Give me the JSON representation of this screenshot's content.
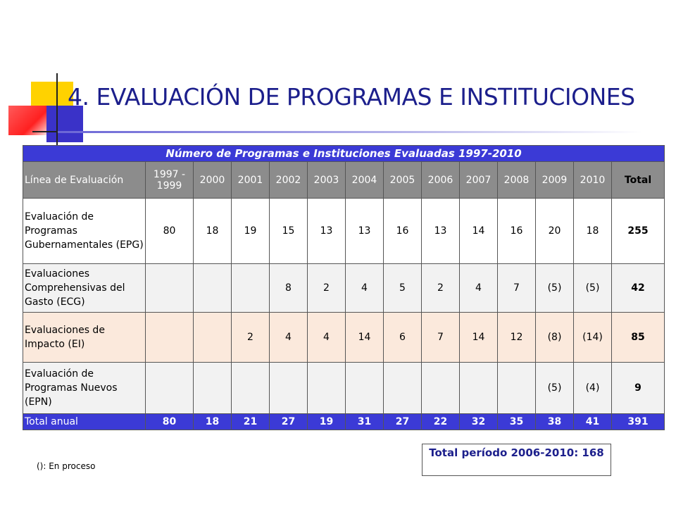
{
  "slide": {
    "title": "4. EVALUACIÓN DE PROGRAMAS E INSTITUCIONES",
    "note": "(): En proceso",
    "period_total": "Total período 2006-2010: 168"
  },
  "table": {
    "caption": "Número de Programas e Instituciones Evaluadas 1997-2010",
    "header": {
      "line_label": "Línea de Evaluación",
      "years": [
        "1997 - 1999",
        "2000",
        "2001",
        "2002",
        "2003",
        "2004",
        "2005",
        "2006",
        "2007",
        "2008",
        "2009",
        "2010"
      ],
      "total_label": "Total"
    },
    "rows": [
      {
        "label": "Evaluación de Programas Gubernamentales (EPG)",
        "values": [
          "80",
          "18",
          "19",
          "15",
          "13",
          "13",
          "16",
          "13",
          "14",
          "16",
          "20",
          "18"
        ],
        "total": "255"
      },
      {
        "label": "Evaluaciones Comprehensivas del Gasto (ECG)",
        "values": [
          "",
          "",
          "",
          "8",
          "2",
          "4",
          "5",
          "2",
          "4",
          "7",
          "(5)",
          "(5)"
        ],
        "total": "42"
      },
      {
        "label": "Evaluaciones de Impacto (EI)",
        "values": [
          "",
          "",
          "2",
          "4",
          "4",
          "14",
          "6",
          "7",
          "14",
          "12",
          "(8)",
          "(14)"
        ],
        "total": "85"
      },
      {
        "label": "Evaluación de Programas Nuevos (EPN)",
        "values": [
          "",
          "",
          "",
          "",
          "",
          "",
          "",
          "",
          "",
          "",
          "(5)",
          "(4)"
        ],
        "total": "9"
      }
    ],
    "total_row": {
      "label": "Total anual",
      "values": [
        "80",
        "18",
        "21",
        "27",
        "19",
        "31",
        "27",
        "22",
        "32",
        "35",
        "38",
        "41"
      ],
      "total": "391"
    }
  },
  "colors": {
    "title": "#1c1f8c",
    "caption_bg": "#3b3ad6",
    "header_bg": "#8c8c8c",
    "ei_row_bg": "#fbe9dc",
    "alt_row_bg": "#f2f2f2"
  }
}
